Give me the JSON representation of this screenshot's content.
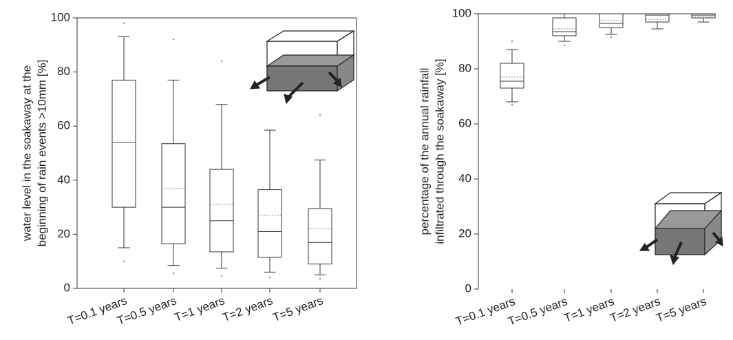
{
  "chart_data": [
    {
      "type": "box",
      "ylabel": [
        "water level in the soakaway at the",
        "beginning of rain events >10mm [%]"
      ],
      "categories": [
        "T=0.1 years",
        "T=0.5 years",
        "T=1 years",
        "T=2 years",
        "T=5 years"
      ],
      "boxes": [
        {
          "min": 15,
          "q1": 30,
          "median": 54,
          "q3": 77,
          "max": 93,
          "mean": 54,
          "outliers": [
            10,
            98
          ]
        },
        {
          "min": 8.5,
          "q1": 16.5,
          "median": 30,
          "q3": 53.5,
          "max": 77,
          "mean": 37,
          "outliers": [
            5.5,
            92
          ]
        },
        {
          "min": 7.5,
          "q1": 13.5,
          "median": 25,
          "q3": 44,
          "max": 68,
          "mean": 31,
          "outliers": [
            4.5,
            84
          ]
        },
        {
          "min": 6,
          "q1": 11.5,
          "median": 21,
          "q3": 36.5,
          "max": 58.5,
          "mean": 27,
          "outliers": [
            4
          ]
        },
        {
          "min": 5,
          "q1": 9,
          "median": 17,
          "q3": 29.5,
          "max": 47.5,
          "mean": 22,
          "outliers": [
            3.5,
            64
          ]
        }
      ],
      "color": "#333333",
      "ylim": [
        0,
        100
      ],
      "yticks": [
        0,
        20,
        40,
        60,
        80,
        100
      ]
    },
    {
      "type": "box",
      "ylabel": [
        "percentage of the annual rainfall",
        "infiltrated through the soakaway [%]"
      ],
      "categories": [
        "T=0.1 years",
        "T=0.5 years",
        "T=1 years",
        "T=2 years",
        "T=5 years"
      ],
      "boxes": [
        {
          "min": 68,
          "q1": 73,
          "median": 75.5,
          "q3": 82,
          "max": 87,
          "mean": 77,
          "outliers": [
            67,
            90
          ]
        },
        {
          "min": 90,
          "q1": 92,
          "median": 93.5,
          "q3": 98.5,
          "max": 100,
          "mean": 94.5,
          "outliers": [
            88.5
          ]
        },
        {
          "min": 92.5,
          "q1": 95,
          "median": 96.5,
          "q3": 100,
          "max": 100,
          "mean": 97.5,
          "outliers": [
            91.5
          ]
        },
        {
          "min": 94.5,
          "q1": 97,
          "median": 99.5,
          "q3": 100,
          "max": 100,
          "mean": 98,
          "outliers": []
        },
        {
          "min": 97,
          "q1": 98.5,
          "median": 99.5,
          "q3": 100,
          "max": 100,
          "mean": 99,
          "outliers": []
        }
      ],
      "color": "#333333",
      "ylim": [
        0,
        100
      ],
      "yticks": [
        0,
        20,
        40,
        60,
        80,
        100
      ]
    }
  ]
}
